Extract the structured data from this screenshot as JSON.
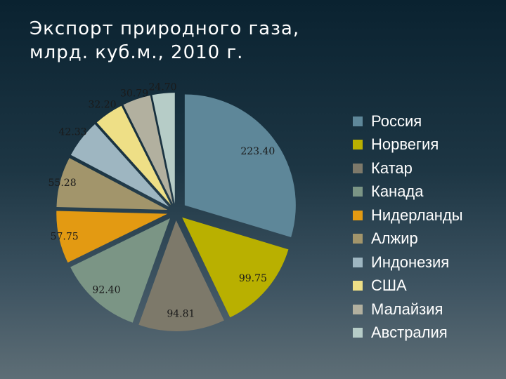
{
  "chart_data": {
    "type": "pie",
    "title": "Экспорт природного газа,\nмлрд. куб.м., 2010 г.",
    "exploded": true,
    "legend_position": "right",
    "categories": [
      "Россия",
      "Норвегия",
      "Катар",
      "Канада",
      "Нидерланды",
      "Алжир",
      "Индонезия",
      "США",
      "Малайзия",
      "Австралия"
    ],
    "values": [
      223.4,
      99.75,
      94.81,
      92.4,
      57.75,
      55.28,
      42.33,
      32.2,
      30.79,
      24.7
    ],
    "labels": [
      "223.40",
      "99.75",
      "94.81",
      "92.40",
      "57.75",
      "55.28",
      "42.33",
      "32.20",
      "30.79",
      "24.70"
    ],
    "colors": [
      "#5e8799",
      "#b9b000",
      "#7d796a",
      "#7b9585",
      "#e39a12",
      "#a2956b",
      "#9eb6c1",
      "#eedf86",
      "#b2b09f",
      "#b6ccc7"
    ]
  }
}
